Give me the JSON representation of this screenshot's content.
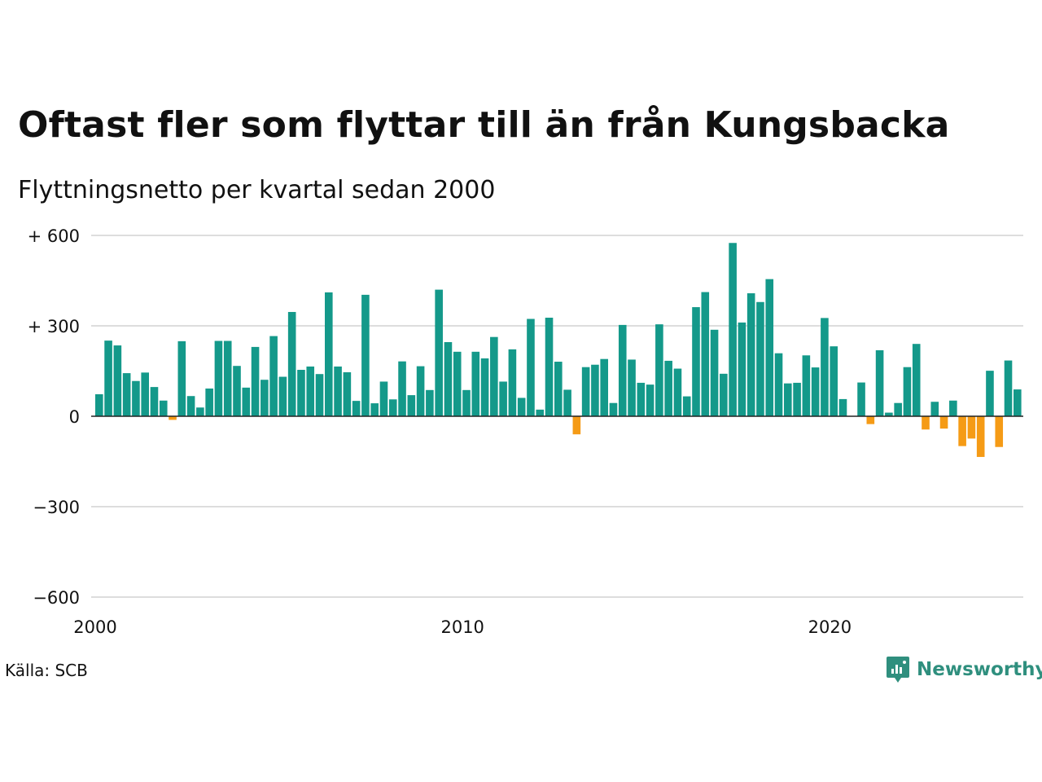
{
  "colors": {
    "positive": "#14998a",
    "negative": "#f59b16",
    "grid": "#dddddd",
    "zero_line": "#222222",
    "logo": "#2f8f7e"
  },
  "source": "Källa: SCB",
  "logo": {
    "icon": "newsworthy-logo-icon",
    "text": "Newsworthy"
  },
  "chart_data": {
    "type": "bar",
    "title": "Oftast fler som flyttar till än från Kungsbacka",
    "subtitle": "Flyttningsnetto per kvartal sedan 2000",
    "xlabel": "",
    "ylabel": "",
    "ylim": [
      -600,
      600
    ],
    "y_ticks": [
      {
        "value": 600,
        "label": "+ 600"
      },
      {
        "value": 300,
        "label": "+ 300"
      },
      {
        "value": 0,
        "label": "0"
      },
      {
        "value": -300,
        "label": "−300"
      },
      {
        "value": -600,
        "label": "−600"
      }
    ],
    "x_ticks": [
      {
        "value": 2000,
        "label": "2000"
      },
      {
        "value": 2010,
        "label": "2010"
      },
      {
        "value": 2020,
        "label": "2020"
      }
    ],
    "grid": "horizontal",
    "first_quarter": "2000K1",
    "values": [
      73,
      251,
      235,
      143,
      117,
      145,
      97,
      52,
      -12,
      249,
      67,
      29,
      92,
      250,
      250,
      167,
      95,
      230,
      121,
      266,
      131,
      346,
      154,
      165,
      140,
      411,
      165,
      146,
      51,
      403,
      43,
      115,
      56,
      182,
      70,
      166,
      87,
      420,
      246,
      214,
      87,
      214,
      192,
      263,
      115,
      222,
      61,
      323,
      22,
      327,
      181,
      88,
      -60,
      163,
      171,
      190,
      44,
      303,
      188,
      111,
      105,
      305,
      184,
      158,
      66,
      362,
      412,
      287,
      141,
      575,
      311,
      408,
      379,
      455,
      209,
      109,
      111,
      202,
      162,
      326,
      232,
      57,
      0,
      112,
      -26,
      219,
      12,
      44,
      163,
      240,
      -44,
      48,
      -41,
      52,
      -99,
      -74,
      -135,
      151,
      -102,
      185,
      89
    ]
  }
}
